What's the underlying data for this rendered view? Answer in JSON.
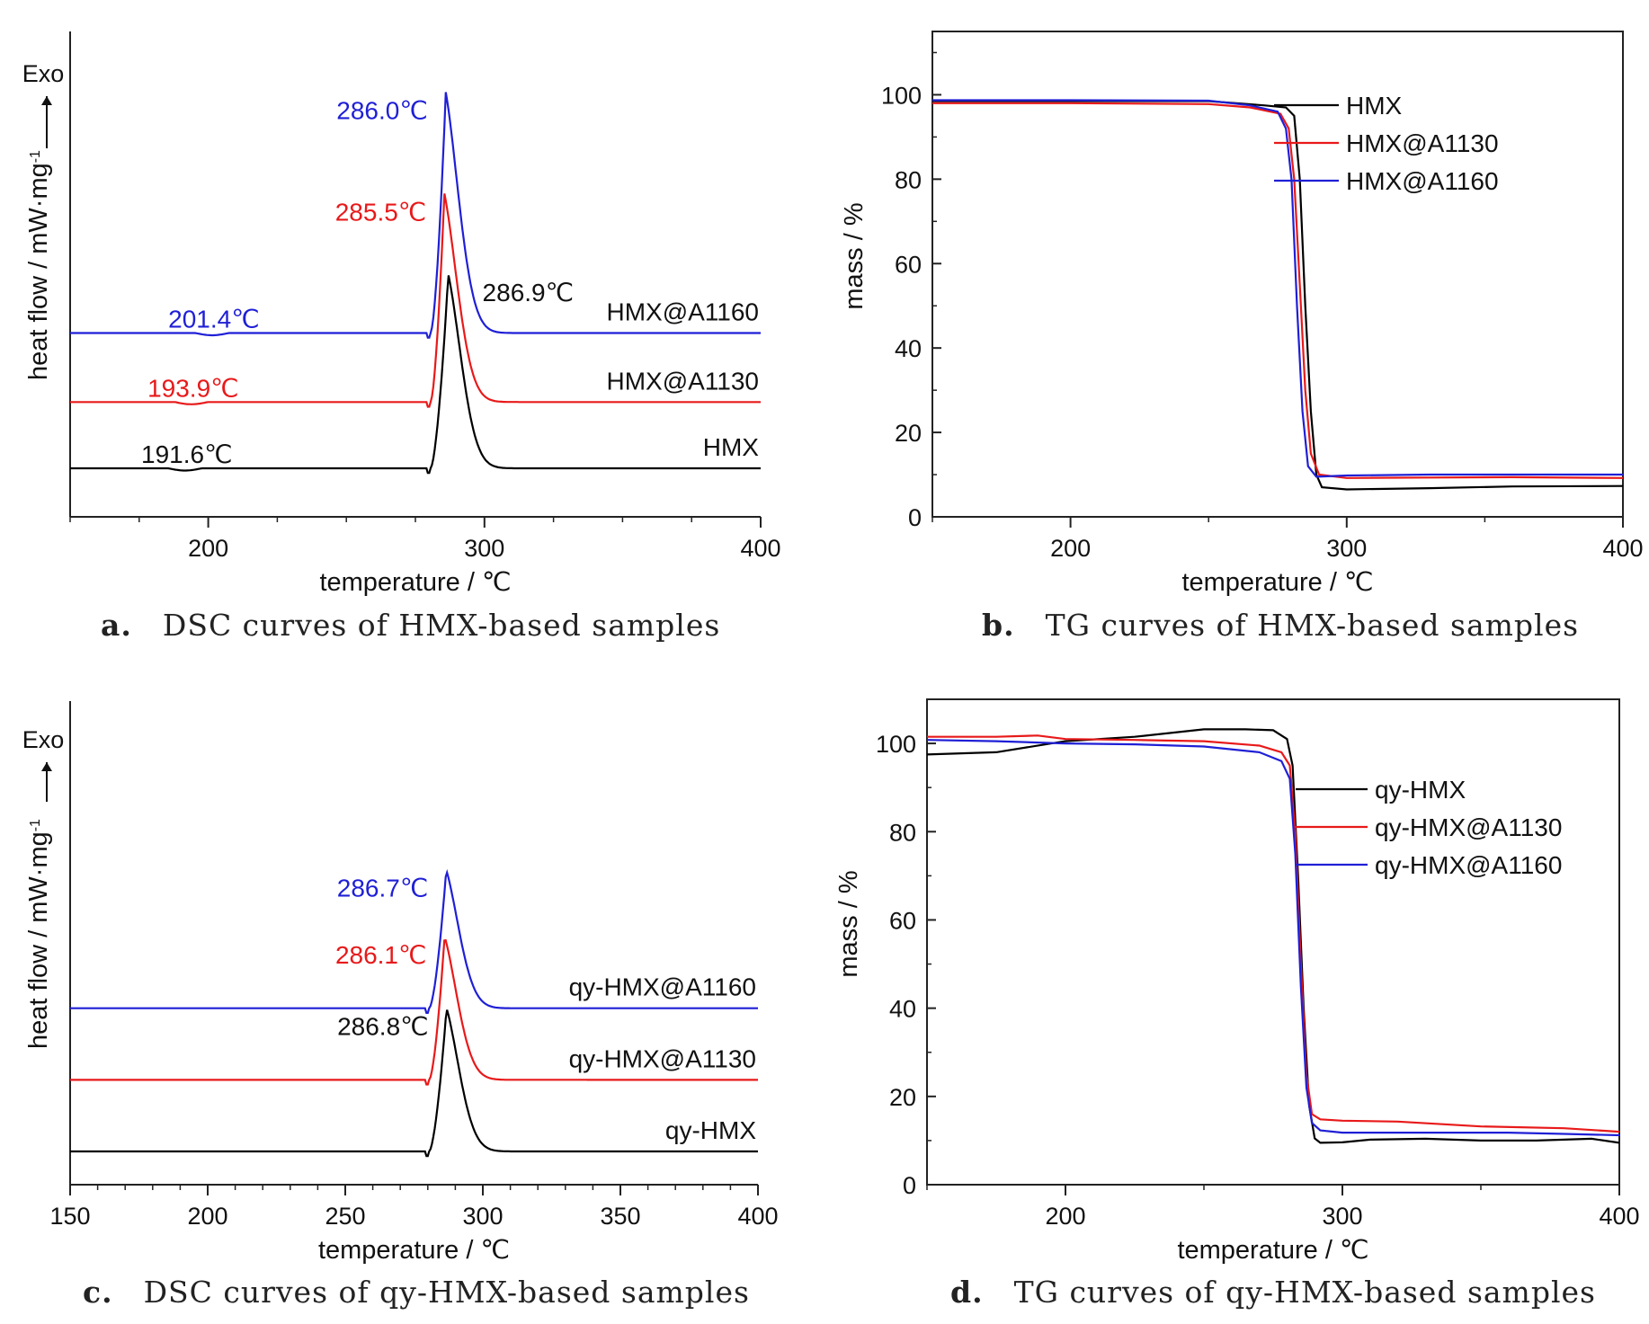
{
  "panels": [
    {
      "id": "a",
      "caption": {
        "letter": "a.",
        "text": "DSC curves of HMX-based samples"
      },
      "chart_data": {
        "type": "line",
        "kind": "dsc",
        "xlabel": "temperature / ℃",
        "ylabel": "heat flow / mW·mg",
        "ylabel_sup": "-1",
        "exo": "Exo",
        "xlim": [
          150,
          400
        ],
        "xticks": [
          200,
          300,
          400
        ],
        "xtick_labels": [
          "200",
          "300",
          "400"
        ],
        "minor_xtick_step": 25,
        "series": [
          {
            "name": "HMX",
            "color": "#000000",
            "baseline": 191.6,
            "peak": 286.9,
            "label_baseline": "191.6℃",
            "label_peak": "286.9℃",
            "peak_label_side": "right",
            "height": 0.54,
            "offset": 0.0
          },
          {
            "name": "HMX@A1130",
            "color": "#e8191a",
            "baseline": 193.9,
            "peak": 285.5,
            "label_baseline": "193.9℃",
            "label_peak": "285.5℃",
            "peak_label_side": "left",
            "height": 0.58,
            "offset": 0.49
          },
          {
            "name": "HMX@A1160",
            "color": "#1f1fd6",
            "baseline": 201.4,
            "peak": 286.0,
            "label_baseline": "201.4℃",
            "label_peak": "286.0℃",
            "peak_label_side": "left",
            "height": 0.67,
            "offset": 1.0
          }
        ]
      }
    },
    {
      "id": "b",
      "caption": {
        "letter": "b.",
        "text": "TG curves of HMX-based samples"
      },
      "chart_data": {
        "type": "line",
        "kind": "tg",
        "xlabel": "temperature / ℃",
        "ylabel": "mass / %",
        "xlim": [
          150,
          400
        ],
        "ylim": [
          0,
          115
        ],
        "xticks": [
          200,
          300,
          400
        ],
        "yticks": [
          0,
          20,
          40,
          60,
          80,
          100
        ],
        "legend_position": "top-right",
        "series": [
          {
            "name": "HMX",
            "color": "#000000",
            "points": [
              [
                150,
                98.5
              ],
              [
                200,
                98.5
              ],
              [
                250,
                98.5
              ],
              [
                270,
                97.5
              ],
              [
                278,
                97
              ],
              [
                281,
                95
              ],
              [
                283,
                80
              ],
              [
                285,
                50
              ],
              [
                287,
                25
              ],
              [
                289,
                10
              ],
              [
                291,
                7
              ],
              [
                300,
                6.5
              ],
              [
                330,
                6.8
              ],
              [
                360,
                7.2
              ],
              [
                400,
                7.3
              ]
            ]
          },
          {
            "name": "HMX@A1130",
            "color": "#e8191a",
            "points": [
              [
                150,
                98
              ],
              [
                200,
                98
              ],
              [
                250,
                97.8
              ],
              [
                265,
                97
              ],
              [
                276,
                95.5
              ],
              [
                279,
                92
              ],
              [
                281,
                80
              ],
              [
                283,
                55
              ],
              [
                285,
                30
              ],
              [
                287,
                15
              ],
              [
                290,
                10
              ],
              [
                300,
                9.2
              ],
              [
                330,
                9.3
              ],
              [
                360,
                9.4
              ],
              [
                400,
                9.2
              ]
            ]
          },
          {
            "name": "HMX@A1160",
            "color": "#1f1fd6",
            "points": [
              [
                150,
                98.7
              ],
              [
                200,
                98.7
              ],
              [
                250,
                98.6
              ],
              [
                265,
                97.5
              ],
              [
                275,
                96
              ],
              [
                278,
                92
              ],
              [
                280,
                80
              ],
              [
                282,
                50
              ],
              [
                284,
                25
              ],
              [
                286,
                12
              ],
              [
                289,
                9.5
              ],
              [
                300,
                9.8
              ],
              [
                330,
                10
              ],
              [
                360,
                10
              ],
              [
                400,
                10
              ]
            ]
          }
        ]
      }
    },
    {
      "id": "c",
      "caption": {
        "letter": "c.",
        "text": "DSC curves of qy-HMX-based samples"
      },
      "chart_data": {
        "type": "line",
        "kind": "dsc",
        "xlabel": "temperature / ℃",
        "ylabel": "heat flow / mW·mg",
        "ylabel_sup": "-1",
        "exo": "Exo",
        "xlim": [
          150,
          400
        ],
        "xticks": [
          150,
          200,
          250,
          300,
          350,
          400
        ],
        "xtick_labels": [
          "150",
          "200",
          "250",
          "300",
          "350",
          "400"
        ],
        "minor_xtick_step": 10,
        "series": [
          {
            "name": "qy-HMX",
            "color": "#000000",
            "peak": 286.8,
            "label_peak": "286.8℃",
            "peak_label_side": "left",
            "height": 0.57,
            "offset": 0.0
          },
          {
            "name": "qy-HMX@A1130",
            "color": "#e8191a",
            "peak": 286.1,
            "label_peak": "286.1℃",
            "peak_label_side": "left",
            "height": 0.57,
            "offset": 0.54
          },
          {
            "name": "qy-HMX@A1160",
            "color": "#1f1fd6",
            "peak": 286.7,
            "label_peak": "286.7℃",
            "peak_label_side": "left",
            "height": 0.55,
            "offset": 1.08
          }
        ]
      }
    },
    {
      "id": "d",
      "caption": {
        "letter": "d.",
        "text": "TG curves of qy-HMX-based samples"
      },
      "chart_data": {
        "type": "line",
        "kind": "tg",
        "xlabel": "temperature / ℃",
        "ylabel": "mass / %",
        "xlim": [
          150,
          400
        ],
        "ylim": [
          0,
          110
        ],
        "xticks": [
          200,
          300,
          400
        ],
        "yticks": [
          0,
          20,
          40,
          60,
          80,
          100
        ],
        "legend_position": "right",
        "series": [
          {
            "name": "qy-HMX",
            "color": "#000000",
            "points": [
              [
                150,
                97.5
              ],
              [
                175,
                98
              ],
              [
                200,
                100.5
              ],
              [
                225,
                101.5
              ],
              [
                250,
                103.2
              ],
              [
                265,
                103.2
              ],
              [
                275,
                103
              ],
              [
                280,
                101
              ],
              [
                282,
                95
              ],
              [
                284,
                70
              ],
              [
                286,
                40
              ],
              [
                288,
                18
              ],
              [
                290,
                10.5
              ],
              [
                292,
                9.5
              ],
              [
                300,
                9.6
              ],
              [
                310,
                10.2
              ],
              [
                330,
                10.4
              ],
              [
                350,
                10
              ],
              [
                370,
                10
              ],
              [
                390,
                10.4
              ],
              [
                400,
                9.5
              ]
            ]
          },
          {
            "name": "qy-HMX@A1130",
            "color": "#e8191a",
            "points": [
              [
                150,
                101.5
              ],
              [
                175,
                101.5
              ],
              [
                190,
                101.8
              ],
              [
                200,
                101
              ],
              [
                225,
                100.8
              ],
              [
                250,
                100.5
              ],
              [
                270,
                99.5
              ],
              [
                278,
                98
              ],
              [
                281,
                95
              ],
              [
                283,
                80
              ],
              [
                285,
                50
              ],
              [
                287,
                25
              ],
              [
                289,
                16
              ],
              [
                292,
                14.8
              ],
              [
                300,
                14.5
              ],
              [
                320,
                14.3
              ],
              [
                350,
                13.2
              ],
              [
                380,
                12.8
              ],
              [
                400,
                12
              ]
            ]
          },
          {
            "name": "qy-HMX@A1160",
            "color": "#1f1fd6",
            "points": [
              [
                150,
                100.8
              ],
              [
                175,
                100.5
              ],
              [
                200,
                100
              ],
              [
                225,
                99.8
              ],
              [
                250,
                99.3
              ],
              [
                270,
                98
              ],
              [
                278,
                96
              ],
              [
                281,
                92
              ],
              [
                283,
                75
              ],
              [
                285,
                45
              ],
              [
                287,
                22
              ],
              [
                289,
                14
              ],
              [
                292,
                12.3
              ],
              [
                300,
                11.8
              ],
              [
                330,
                11.8
              ],
              [
                360,
                11.8
              ],
              [
                380,
                11.5
              ],
              [
                400,
                11.2
              ]
            ]
          }
        ]
      }
    }
  ]
}
